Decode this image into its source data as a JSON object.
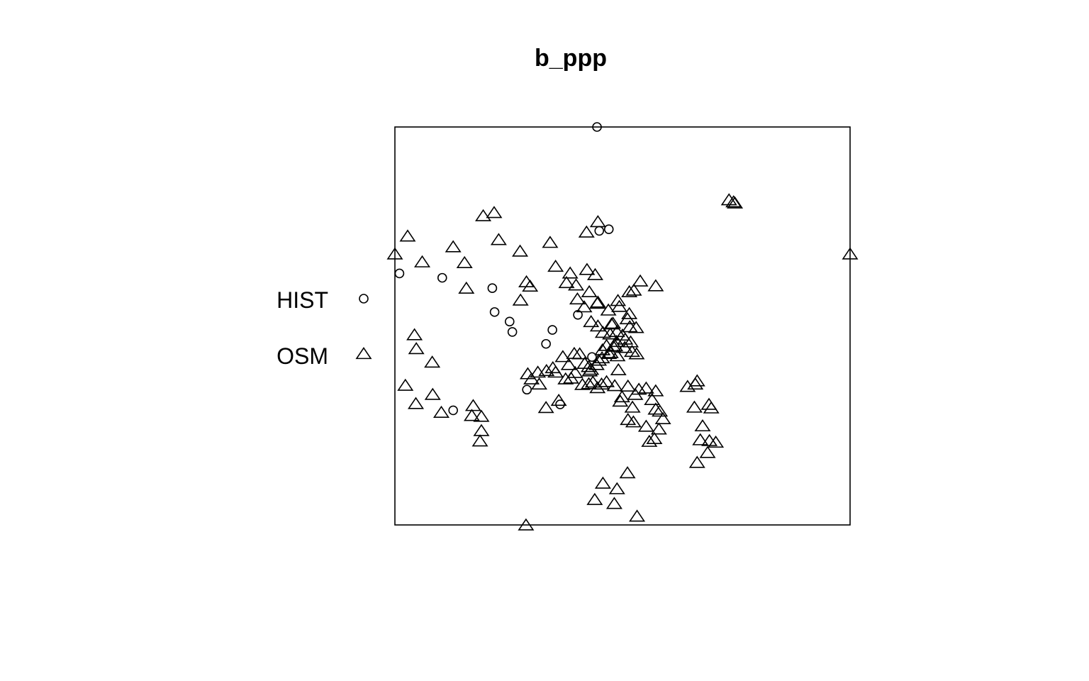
{
  "chart_data": {
    "type": "scatter",
    "title": "b_ppp",
    "legend": {
      "placement": "left",
      "entries": [
        {
          "label": "HIST",
          "marker": "circle"
        },
        {
          "label": "OSM",
          "marker": "triangle"
        }
      ]
    },
    "colors": {
      "mark": "#000000",
      "background": "#ffffff"
    },
    "xlim": [
      0,
      100
    ],
    "ylim": [
      0,
      100
    ],
    "grid": false,
    "series": [
      {
        "name": "HIST",
        "marker": "circle",
        "points": [
          [
            44.4,
            100
          ],
          [
            44.9,
            73.9
          ],
          [
            47.0,
            74.3
          ],
          [
            1.0,
            63.2
          ],
          [
            10.4,
            62.1
          ],
          [
            21.4,
            59.5
          ],
          [
            21.9,
            53.5
          ],
          [
            25.2,
            51.1
          ],
          [
            25.8,
            48.5
          ],
          [
            33.2,
            45.5
          ],
          [
            34.6,
            49.0
          ],
          [
            40.2,
            52.8
          ],
          [
            12.8,
            28.8
          ],
          [
            29.0,
            34.0
          ],
          [
            36.3,
            30.3
          ],
          [
            43.3,
            42.2
          ]
        ]
      },
      {
        "name": "OSM",
        "marker": "triangle",
        "points": [
          [
            0,
            68.0
          ],
          [
            2.8,
            72.5
          ],
          [
            6.0,
            66.0
          ],
          [
            12.8,
            69.8
          ],
          [
            15.3,
            65.8
          ],
          [
            15.7,
            59.4
          ],
          [
            19.4,
            77.6
          ],
          [
            21.8,
            78.4
          ],
          [
            22.8,
            71.6
          ],
          [
            27.5,
            68.7
          ],
          [
            28.9,
            61.0
          ],
          [
            29.7,
            59.9
          ],
          [
            27.6,
            56.4
          ],
          [
            34.1,
            70.9
          ],
          [
            35.3,
            64.9
          ],
          [
            37.7,
            60.8
          ],
          [
            38.5,
            63.2
          ],
          [
            39.8,
            60.2
          ],
          [
            40.1,
            56.7
          ],
          [
            42.2,
            64.1
          ],
          [
            42.7,
            58.5
          ],
          [
            42.1,
            73.5
          ],
          [
            44.6,
            76.1
          ],
          [
            44.0,
            62.8
          ],
          [
            44.5,
            55.6
          ],
          [
            41.6,
            54.7
          ],
          [
            44.6,
            55.9
          ],
          [
            43.1,
            51.0
          ],
          [
            44.6,
            49.9
          ],
          [
            45.7,
            48.3
          ],
          [
            46.9,
            53.9
          ],
          [
            47.9,
            50.6
          ],
          [
            49.0,
            56.3
          ],
          [
            49.3,
            54.8
          ],
          [
            51.5,
            53.0
          ],
          [
            51.1,
            51.7
          ],
          [
            47.6,
            50.4
          ],
          [
            48.7,
            46.0
          ],
          [
            50.5,
            44.5
          ],
          [
            48.4,
            44.9
          ],
          [
            47.3,
            47.9
          ],
          [
            50.0,
            47.6
          ],
          [
            51.8,
            45.9
          ],
          [
            52.1,
            43.5
          ],
          [
            53.1,
            42.9
          ],
          [
            49.1,
            38.9
          ],
          [
            48.9,
            42.4
          ],
          [
            48.0,
            44.8
          ],
          [
            47.4,
            43.2
          ],
          [
            46.5,
            45.0
          ],
          [
            45.6,
            43.9
          ],
          [
            44.8,
            41.3
          ],
          [
            43.1,
            39.0
          ],
          [
            42.6,
            39.7
          ],
          [
            41.7,
            40.5
          ],
          [
            40.6,
            42.9
          ],
          [
            39.4,
            43.0
          ],
          [
            38.2,
            40.2
          ],
          [
            36.9,
            42.2
          ],
          [
            35.3,
            38.3
          ],
          [
            34.7,
            39.4
          ],
          [
            33.3,
            38.7
          ],
          [
            31.4,
            38.3
          ],
          [
            30.0,
            36.6
          ],
          [
            29.2,
            37.9
          ],
          [
            31.7,
            35.3
          ],
          [
            33.2,
            29.4
          ],
          [
            36.0,
            31.2
          ],
          [
            37.5,
            36.6
          ],
          [
            38.7,
            36.8
          ],
          [
            39.6,
            38.2
          ],
          [
            41.2,
            35.2
          ],
          [
            42.6,
            35.4
          ],
          [
            43.5,
            35.8
          ],
          [
            49.9,
            32.1
          ],
          [
            51.2,
            34.8
          ],
          [
            52.8,
            32.7
          ],
          [
            53.6,
            34.0
          ],
          [
            55.2,
            34.3
          ],
          [
            57.3,
            33.6
          ],
          [
            56.5,
            31.4
          ],
          [
            57.3,
            29.0
          ],
          [
            58.2,
            28.5
          ],
          [
            58.9,
            26.6
          ],
          [
            58.0,
            24.0
          ],
          [
            57.0,
            21.6
          ],
          [
            55.9,
            20.9
          ],
          [
            55.2,
            24.7
          ],
          [
            52.4,
            25.8
          ],
          [
            51.2,
            26.4
          ],
          [
            52.2,
            29.5
          ],
          [
            49.5,
            31.0
          ],
          [
            48.3,
            34.9
          ],
          [
            46.5,
            35.9
          ],
          [
            45.4,
            35.3
          ],
          [
            44.5,
            34.4
          ],
          [
            42.8,
            38.6
          ],
          [
            44.3,
            40.2
          ],
          [
            45.5,
            41.9
          ],
          [
            47.0,
            43.0
          ],
          [
            48.8,
            48.5
          ],
          [
            50.6,
            46.6
          ],
          [
            51.6,
            49.7
          ],
          [
            53.0,
            49.5
          ],
          [
            51.5,
            58.5
          ],
          [
            52.5,
            58.9
          ],
          [
            53.9,
            61.2
          ],
          [
            57.3,
            60.0
          ],
          [
            64.3,
            34.7
          ],
          [
            66.0,
            35.3
          ],
          [
            66.4,
            36.1
          ],
          [
            69.0,
            30.2
          ],
          [
            65.8,
            29.5
          ],
          [
            69.5,
            29.3
          ],
          [
            67.6,
            24.8
          ],
          [
            67.1,
            21.3
          ],
          [
            69.1,
            21.1
          ],
          [
            70.5,
            20.7
          ],
          [
            68.7,
            18.1
          ],
          [
            66.4,
            15.6
          ],
          [
            51.1,
            13.0
          ],
          [
            45.7,
            10.4
          ],
          [
            48.8,
            9.0
          ],
          [
            43.9,
            6.3
          ],
          [
            48.2,
            5.3
          ],
          [
            53.2,
            2.1
          ],
          [
            28.8,
            -0.1
          ],
          [
            19.0,
            23.6
          ],
          [
            18.7,
            21.0
          ],
          [
            10.2,
            28.2
          ],
          [
            17.2,
            29.9
          ],
          [
            19.0,
            27.2
          ],
          [
            16.9,
            27.4
          ],
          [
            2.3,
            35.0
          ],
          [
            4.6,
            30.4
          ],
          [
            8.3,
            32.7
          ],
          [
            4.3,
            47.7
          ],
          [
            4.7,
            44.2
          ],
          [
            8.2,
            40.8
          ],
          [
            73.4,
            81.6
          ],
          [
            74.4,
            81.1
          ],
          [
            74.7,
            80.8
          ],
          [
            100,
            68.0
          ]
        ]
      }
    ]
  }
}
